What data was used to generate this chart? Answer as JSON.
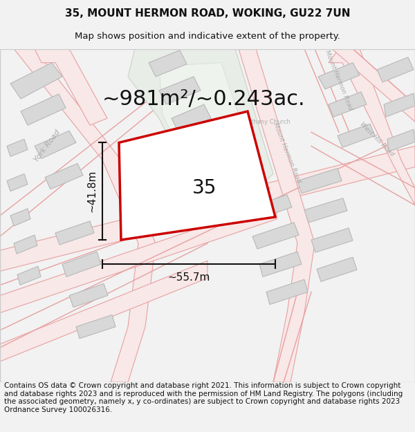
{
  "title_line1": "35, MOUNT HERMON ROAD, WOKING, GU22 7UN",
  "title_line2": "Map shows position and indicative extent of the property.",
  "area_text": "~981m²/~0.243ac.",
  "label_35": "35",
  "dim_width": "~55.7m",
  "dim_height": "~41.8m",
  "footer": "Contains OS data © Crown copyright and database right 2021. This information is subject to Crown copyright and database rights 2023 and is reproduced with the permission of HM Land Registry. The polygons (including the associated geometry, namely x, y co-ordinates) are subject to Crown copyright and database rights 2023 Ordnance Survey 100026316.",
  "bg_color": "#f2f2f2",
  "map_bg": "#ffffff",
  "road_line_color": "#e8a0a0",
  "road_fill_color": "#f8e8e8",
  "green_color": "#e8ede8",
  "green_edge": "#c8d4c8",
  "building_color": "#d8d8d8",
  "building_edge": "#b8b8b8",
  "plot_color": "#cc0000",
  "dim_color": "#111111",
  "label_color": "#aaaaaa",
  "title_fontsize": 11,
  "subtitle_fontsize": 9.5,
  "area_fontsize": 22,
  "label_fontsize": 20,
  "dim_fontsize": 11,
  "road_label_fontsize": 6.5,
  "footer_fontsize": 7.5
}
